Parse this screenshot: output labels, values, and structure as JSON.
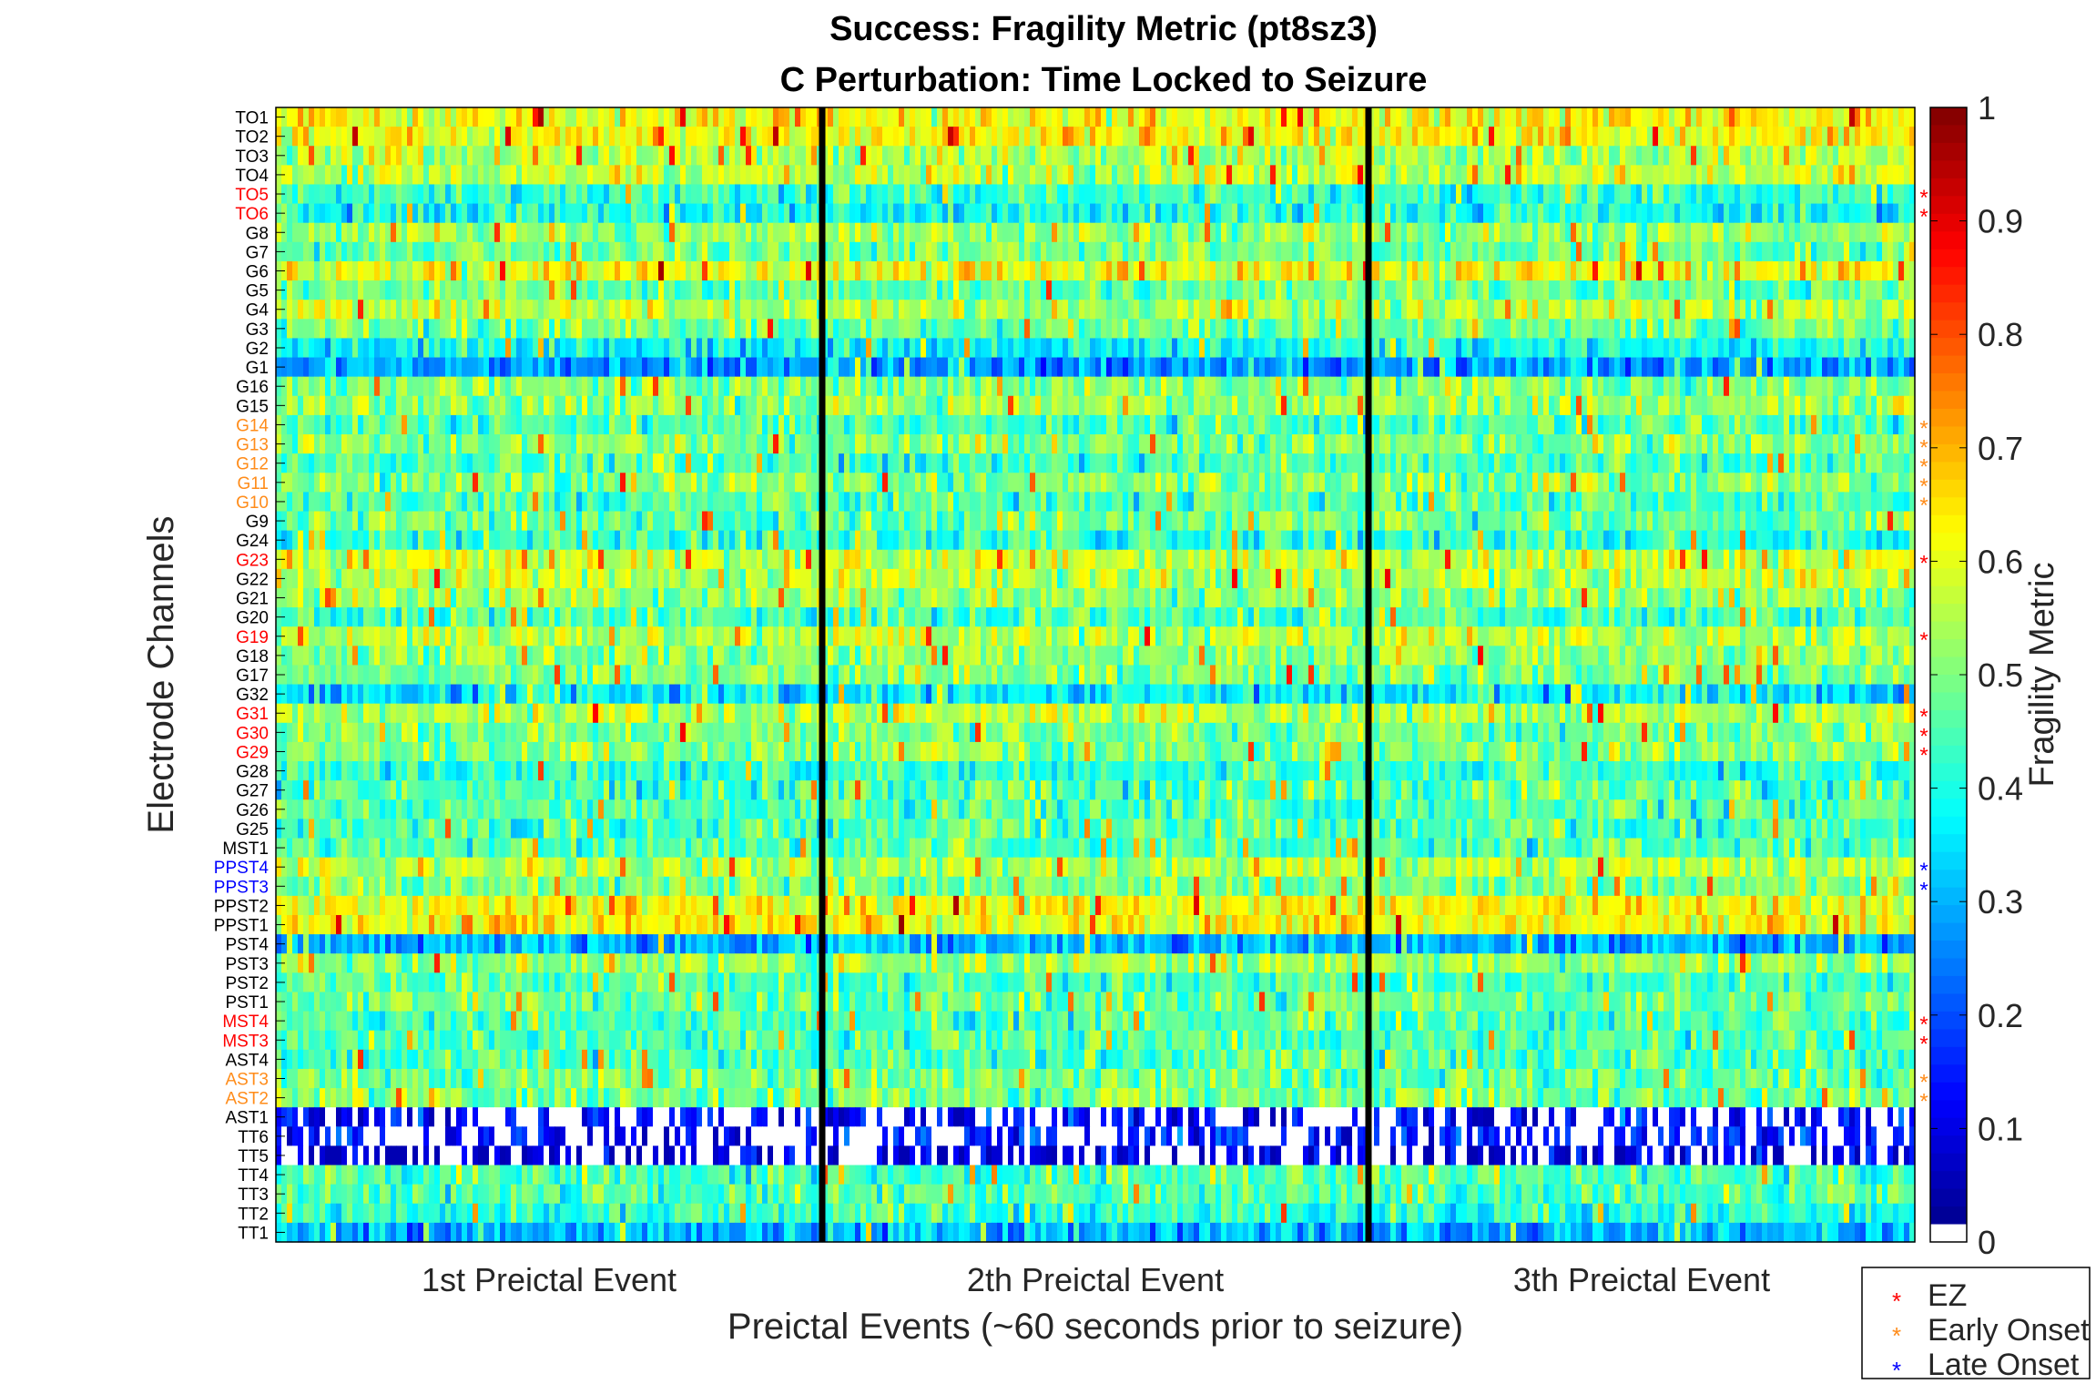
{
  "chart_data": {
    "type": "heatmap",
    "title": [
      "Success: Fragility Metric (pt8sz3)",
      "C Perturbation:  Time Locked to Seizure"
    ],
    "xlabel": "Preictal Events (~60 seconds prior to seizure)",
    "ylabel": "Electrode Channels",
    "x_event_labels": [
      "1st Preictal Event",
      "2th Preictal Event",
      "3th Preictal Event"
    ],
    "colorbar": {
      "label": "Fragility Metric",
      "range": [
        0,
        1
      ],
      "ticks": [
        "0",
        "0.1",
        "0.2",
        "0.3",
        "0.4",
        "0.5",
        "0.6",
        "0.7",
        "0.8",
        "0.9",
        "1"
      ],
      "colormap": "jet",
      "zero_color": "#ffffff"
    },
    "channels": [
      {
        "name": "TO1",
        "group": "none",
        "mean": 0.62
      },
      {
        "name": "TO2",
        "group": "none",
        "mean": 0.62
      },
      {
        "name": "TO3",
        "group": "none",
        "mean": 0.55
      },
      {
        "name": "TO4",
        "group": "none",
        "mean": 0.56
      },
      {
        "name": "TO5",
        "group": "EZ",
        "mean": 0.42
      },
      {
        "name": "TO6",
        "group": "EZ",
        "mean": 0.4
      },
      {
        "name": "G8",
        "group": "none",
        "mean": 0.52
      },
      {
        "name": "G7",
        "group": "none",
        "mean": 0.48
      },
      {
        "name": "G6",
        "group": "none",
        "mean": 0.6
      },
      {
        "name": "G5",
        "group": "none",
        "mean": 0.48
      },
      {
        "name": "G4",
        "group": "none",
        "mean": 0.55
      },
      {
        "name": "G3",
        "group": "none",
        "mean": 0.48
      },
      {
        "name": "G2",
        "group": "none",
        "mean": 0.38
      },
      {
        "name": "G1",
        "group": "none",
        "mean": 0.28
      },
      {
        "name": "G16",
        "group": "none",
        "mean": 0.5
      },
      {
        "name": "G15",
        "group": "none",
        "mean": 0.52
      },
      {
        "name": "G14",
        "group": "Early Onset",
        "mean": 0.45
      },
      {
        "name": "G13",
        "group": "Early Onset",
        "mean": 0.5
      },
      {
        "name": "G12",
        "group": "Early Onset",
        "mean": 0.45
      },
      {
        "name": "G11",
        "group": "Early Onset",
        "mean": 0.5
      },
      {
        "name": "G10",
        "group": "Early Onset",
        "mean": 0.45
      },
      {
        "name": "G9",
        "group": "none",
        "mean": 0.48
      },
      {
        "name": "G24",
        "group": "none",
        "mean": 0.42
      },
      {
        "name": "G23",
        "group": "EZ",
        "mean": 0.58
      },
      {
        "name": "G22",
        "group": "none",
        "mean": 0.55
      },
      {
        "name": "G21",
        "group": "none",
        "mean": 0.52
      },
      {
        "name": "G20",
        "group": "none",
        "mean": 0.45
      },
      {
        "name": "G19",
        "group": "EZ",
        "mean": 0.55
      },
      {
        "name": "G18",
        "group": "none",
        "mean": 0.52
      },
      {
        "name": "G17",
        "group": "none",
        "mean": 0.5
      },
      {
        "name": "G32",
        "group": "none",
        "mean": 0.35
      },
      {
        "name": "G31",
        "group": "EZ",
        "mean": 0.55
      },
      {
        "name": "G30",
        "group": "EZ",
        "mean": 0.5
      },
      {
        "name": "G29",
        "group": "EZ",
        "mean": 0.5
      },
      {
        "name": "G28",
        "group": "none",
        "mean": 0.42
      },
      {
        "name": "G27",
        "group": "none",
        "mean": 0.45
      },
      {
        "name": "G26",
        "group": "none",
        "mean": 0.45
      },
      {
        "name": "G25",
        "group": "none",
        "mean": 0.45
      },
      {
        "name": "MST1",
        "group": "none",
        "mean": 0.45
      },
      {
        "name": "PPST4",
        "group": "Late Onset",
        "mean": 0.55
      },
      {
        "name": "PPST3",
        "group": "Late Onset",
        "mean": 0.5
      },
      {
        "name": "PPST2",
        "group": "none",
        "mean": 0.62
      },
      {
        "name": "PPST1",
        "group": "none",
        "mean": 0.62
      },
      {
        "name": "PST4",
        "group": "none",
        "mean": 0.3
      },
      {
        "name": "PST3",
        "group": "none",
        "mean": 0.52
      },
      {
        "name": "PST2",
        "group": "none",
        "mean": 0.45
      },
      {
        "name": "PST1",
        "group": "none",
        "mean": 0.48
      },
      {
        "name": "MST4",
        "group": "EZ",
        "mean": 0.45
      },
      {
        "name": "MST3",
        "group": "EZ",
        "mean": 0.45
      },
      {
        "name": "AST4",
        "group": "none",
        "mean": 0.45
      },
      {
        "name": "AST3",
        "group": "Early Onset",
        "mean": 0.48
      },
      {
        "name": "AST2",
        "group": "Early Onset",
        "mean": 0.5
      },
      {
        "name": "AST1",
        "group": "none",
        "mean": 0.12
      },
      {
        "name": "TT6",
        "group": "none",
        "mean": 0.15
      },
      {
        "name": "TT5",
        "group": "none",
        "mean": 0.08
      },
      {
        "name": "TT4",
        "group": "none",
        "mean": 0.45
      },
      {
        "name": "TT3",
        "group": "none",
        "mean": 0.45
      },
      {
        "name": "TT2",
        "group": "none",
        "mean": 0.42
      },
      {
        "name": "TT1",
        "group": "none",
        "mean": 0.3
      }
    ],
    "legend": {
      "placement": "bottom-right",
      "entries": [
        {
          "label": "EZ",
          "marker": "*",
          "color": "#ff0000"
        },
        {
          "label": "Early Onset",
          "marker": "*",
          "color": "#ff8c1a"
        },
        {
          "label": "Late Onset",
          "marker": "*",
          "color": "#0000ff"
        }
      ]
    },
    "event_separators": 2
  }
}
